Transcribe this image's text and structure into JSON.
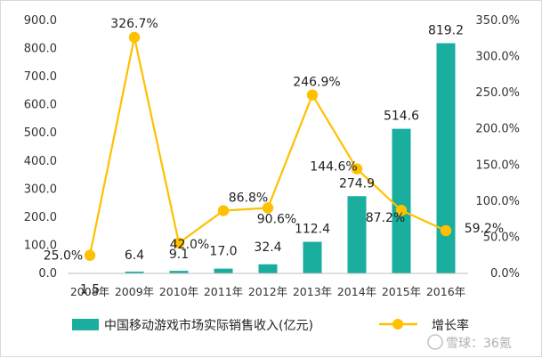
{
  "chart_data": {
    "type": "bar+line",
    "categories": [
      "2008年",
      "2009年",
      "2010年",
      "2011年",
      "2012年",
      "2013年",
      "2014年",
      "2015年",
      "2016年"
    ],
    "series": [
      {
        "name": "中国移动游戏市场实际销售收入(亿元)",
        "type": "bar",
        "axis": "left",
        "values": [
          1.5,
          6.4,
          9.1,
          17.0,
          32.4,
          112.4,
          274.9,
          514.6,
          819.2
        ],
        "labels": [
          "1.5",
          "6.4",
          "9.1",
          "17.0",
          "32.4",
          "112.4",
          "274.9",
          "514.6",
          "819.2"
        ]
      },
      {
        "name": "增长率",
        "type": "line",
        "axis": "right",
        "values": [
          25.0,
          326.7,
          42.0,
          86.8,
          90.6,
          246.9,
          144.6,
          87.2,
          59.2
        ],
        "labels": [
          "25.0%",
          "326.7%",
          "42.0%",
          "86.8%",
          "90.6%",
          "246.9%",
          "144.6%",
          "87.2%",
          "59.2%"
        ]
      }
    ],
    "y_left": {
      "range": [
        0,
        900
      ],
      "ticks": [
        "0.0",
        "100.0",
        "200.0",
        "300.0",
        "400.0",
        "500.0",
        "600.0",
        "700.0",
        "800.0",
        "900.0"
      ]
    },
    "y_right": {
      "range": [
        0,
        350
      ],
      "ticks": [
        "0.0%",
        "50.0%",
        "100.0%",
        "150.0%",
        "200.0%",
        "250.0%",
        "300.0%",
        "350.0%"
      ]
    },
    "grid": false,
    "legend_position": "bottom",
    "colors": {
      "bar": "#1aae9f",
      "line": "#ffc000"
    }
  },
  "watermark": {
    "text": "雪球：36氪"
  }
}
